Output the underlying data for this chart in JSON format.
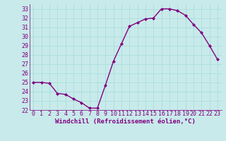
{
  "x": [
    0,
    1,
    2,
    3,
    4,
    5,
    6,
    7,
    8,
    9,
    10,
    11,
    12,
    13,
    14,
    15,
    16,
    17,
    18,
    19,
    20,
    21,
    22,
    23
  ],
  "y": [
    25.0,
    25.0,
    24.9,
    23.8,
    23.7,
    23.2,
    22.8,
    22.2,
    22.2,
    24.7,
    27.3,
    29.2,
    31.1,
    31.5,
    31.9,
    32.0,
    33.0,
    33.0,
    32.8,
    32.3,
    31.3,
    30.4,
    29.0,
    27.5
  ],
  "line_color": "#800080",
  "marker": "D",
  "marker_size": 2,
  "bg_color": "#c8eaea",
  "grid_color": "#aadddd",
  "xlabel": "Windchill (Refroidissement éolien,°C)",
  "xlim": [
    -0.5,
    23.5
  ],
  "ylim": [
    22,
    33.5
  ],
  "yticks": [
    22,
    23,
    24,
    25,
    26,
    27,
    28,
    29,
    30,
    31,
    32,
    33
  ],
  "xticks": [
    0,
    1,
    2,
    3,
    4,
    5,
    6,
    7,
    8,
    9,
    10,
    11,
    12,
    13,
    14,
    15,
    16,
    17,
    18,
    19,
    20,
    21,
    22,
    23
  ],
  "xlabel_fontsize": 6.5,
  "tick_fontsize": 6,
  "line_width": 1.0
}
